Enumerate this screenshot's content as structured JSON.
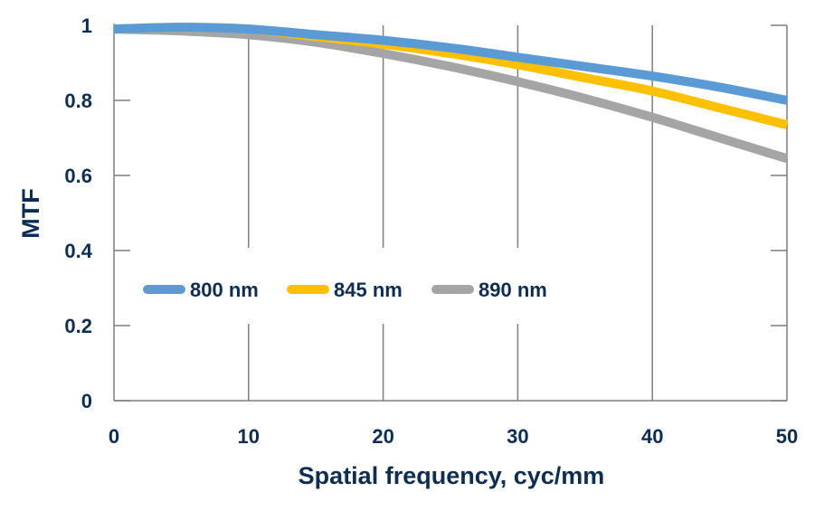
{
  "chart_data": {
    "type": "line",
    "xlabel": "Spatial frequency, cyc/mm",
    "ylabel": "MTF",
    "xlim": [
      0,
      50
    ],
    "ylim": [
      0,
      1
    ],
    "x_ticks": [
      "0",
      "10",
      "20",
      "30",
      "40",
      "50"
    ],
    "y_ticks": [
      "0",
      "0.2",
      "0.4",
      "0.6",
      "0.8",
      "1"
    ],
    "grid": "vertical major gridlines and horizontal tick marks",
    "legend_position": "center-left inside plot",
    "x": [
      0,
      5,
      10,
      15,
      20,
      25,
      30,
      35,
      40,
      45,
      50
    ],
    "series": [
      {
        "name": "800 nm",
        "color": "#5b9bd5",
        "values": [
          0.99,
          0.995,
          0.99,
          0.975,
          0.96,
          0.94,
          0.915,
          0.89,
          0.865,
          0.835,
          0.8
        ]
      },
      {
        "name": "845 nm",
        "color": "#ffc000",
        "values": [
          0.99,
          0.995,
          0.99,
          0.97,
          0.95,
          0.925,
          0.895,
          0.86,
          0.825,
          0.78,
          0.735
        ]
      },
      {
        "name": "890 nm",
        "color": "#a5a5a5",
        "values": [
          0.99,
          0.985,
          0.975,
          0.955,
          0.925,
          0.89,
          0.85,
          0.805,
          0.755,
          0.7,
          0.645
        ]
      }
    ]
  }
}
